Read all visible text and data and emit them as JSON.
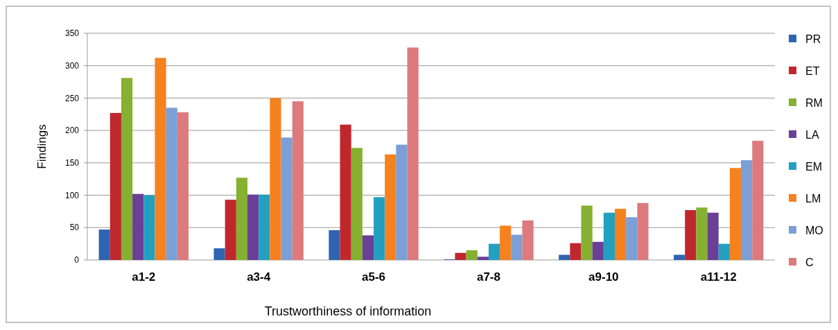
{
  "chart_data": {
    "type": "bar",
    "xlabel": "Trustworthiness of information",
    "ylabel": "Findings",
    "categories": [
      "a1-2",
      "a3-4",
      "a5-6",
      "a7-8",
      "a9-10",
      "a11-12"
    ],
    "series": [
      {
        "name": "PR",
        "color": "#2e64b0",
        "values": [
          47,
          18,
          46,
          1,
          8,
          8
        ]
      },
      {
        "name": "ET",
        "color": "#c0272d",
        "values": [
          227,
          93,
          209,
          11,
          26,
          77
        ]
      },
      {
        "name": "RM",
        "color": "#86b030",
        "values": [
          281,
          127,
          173,
          15,
          84,
          81
        ]
      },
      {
        "name": "LA",
        "color": "#6a3f98",
        "values": [
          102,
          101,
          38,
          5,
          28,
          73
        ]
      },
      {
        "name": "EM",
        "color": "#23a0bf",
        "values": [
          100,
          101,
          97,
          25,
          73,
          25
        ]
      },
      {
        "name": "LM",
        "color": "#f5811f",
        "values": [
          312,
          250,
          163,
          53,
          79,
          142
        ]
      },
      {
        "name": "MO",
        "color": "#7b9fd6",
        "values": [
          235,
          189,
          178,
          39,
          66,
          154
        ]
      },
      {
        "name": "C",
        "color": "#dc7a7e",
        "values": [
          228,
          245,
          328,
          61,
          88,
          184
        ]
      }
    ],
    "ylim": [
      0,
      350
    ],
    "yticks": [
      0,
      50,
      100,
      150,
      200,
      250,
      300,
      350
    ],
    "grid": "y",
    "legend": "right"
  }
}
